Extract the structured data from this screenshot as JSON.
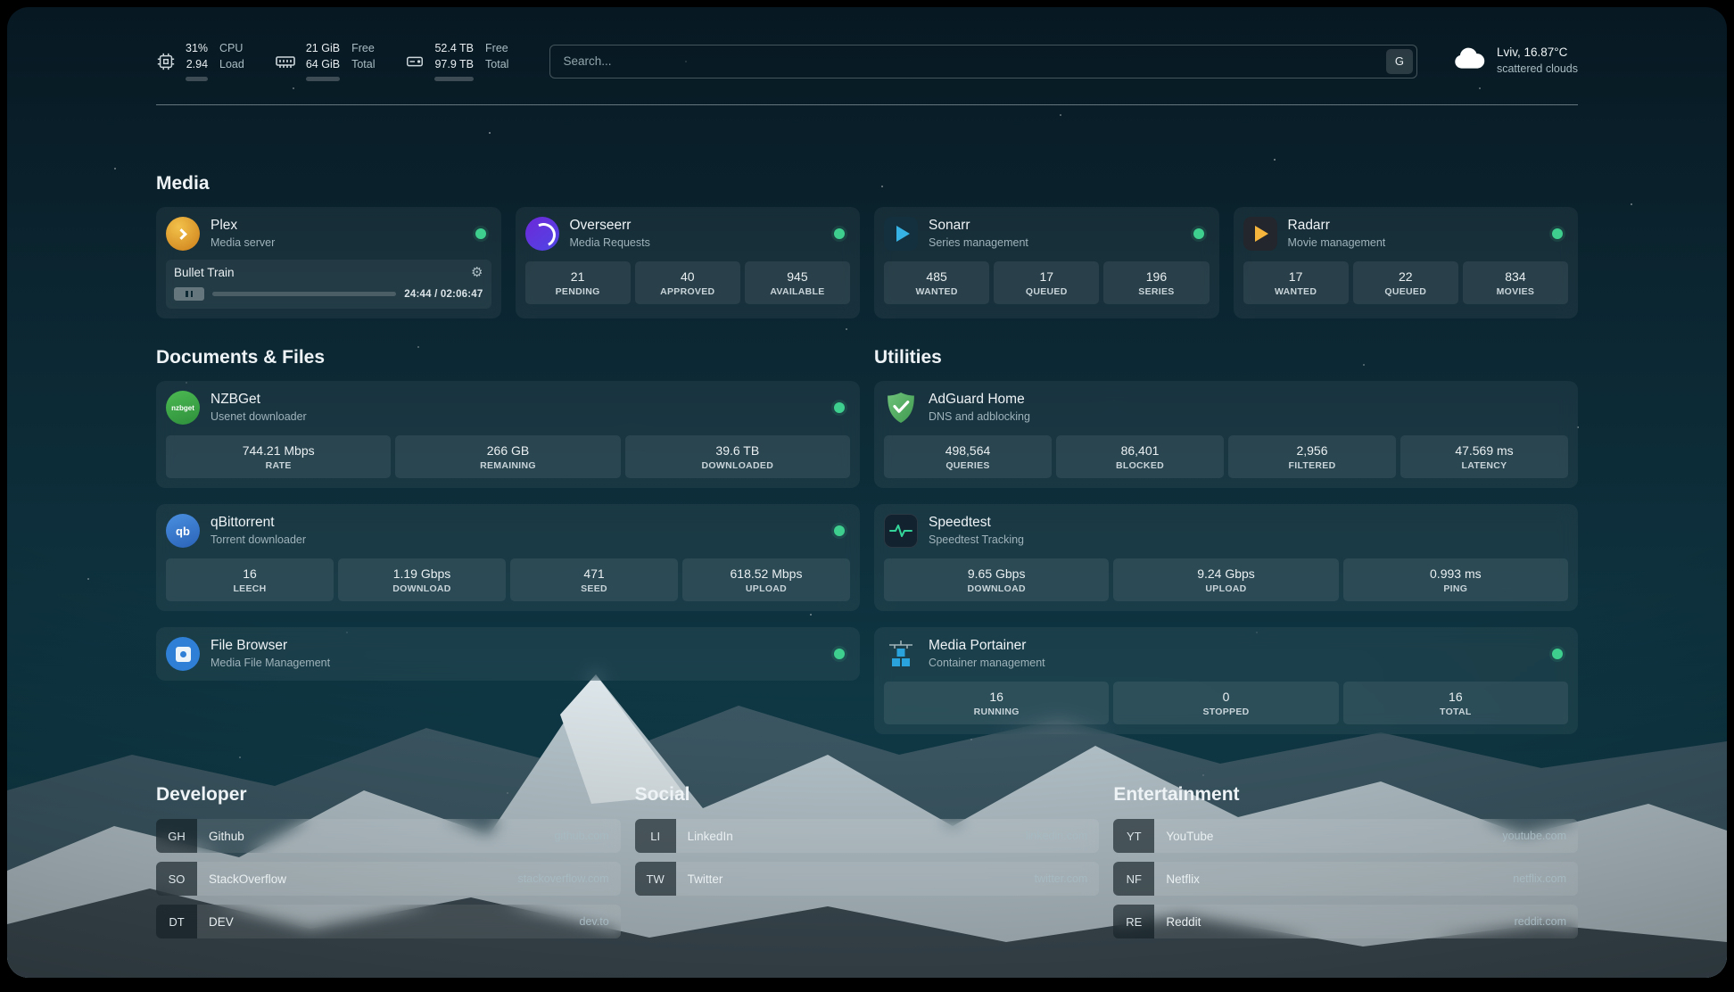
{
  "topbar": {
    "cpu": {
      "value_top": "31%",
      "value_bottom": "2.94",
      "label_top": "CPU",
      "label_bottom": "Load",
      "progress_pct": 31
    },
    "memory": {
      "value_top": "21 GiB",
      "value_bottom": "64 GiB",
      "label_top": "Free",
      "label_bottom": "Total",
      "progress_pct": 67
    },
    "disk": {
      "value_top": "52.4 TB",
      "value_bottom": "97.9 TB",
      "label_top": "Free",
      "label_bottom": "Total",
      "progress_pct": 47
    },
    "search": {
      "placeholder": "Search...",
      "provider_button": "G"
    },
    "weather": {
      "location": "Lviv, 16.87°C",
      "condition": "scattered clouds"
    }
  },
  "sections": {
    "media": "Media",
    "documents": "Documents & Files",
    "utilities": "Utilities",
    "developer": "Developer",
    "social": "Social",
    "entertainment": "Entertainment"
  },
  "services": {
    "plex": {
      "name": "Plex",
      "subtitle": "Media server",
      "now_playing": "Bullet Train",
      "time": "24:44 / 02:06:47",
      "progress_pct": 19.5
    },
    "overseerr": {
      "name": "Overseerr",
      "subtitle": "Media Requests",
      "stats": [
        {
          "value": "21",
          "label": "PENDING"
        },
        {
          "value": "40",
          "label": "APPROVED"
        },
        {
          "value": "945",
          "label": "AVAILABLE"
        }
      ]
    },
    "sonarr": {
      "name": "Sonarr",
      "subtitle": "Series management",
      "stats": [
        {
          "value": "485",
          "label": "WANTED"
        },
        {
          "value": "17",
          "label": "QUEUED"
        },
        {
          "value": "196",
          "label": "SERIES"
        }
      ]
    },
    "radarr": {
      "name": "Radarr",
      "subtitle": "Movie management",
      "stats": [
        {
          "value": "17",
          "label": "WANTED"
        },
        {
          "value": "22",
          "label": "QUEUED"
        },
        {
          "value": "834",
          "label": "MOVIES"
        }
      ]
    },
    "nzbget": {
      "name": "NZBGet",
      "subtitle": "Usenet downloader",
      "icon_text": "nzbget",
      "stats": [
        {
          "value": "744.21 Mbps",
          "label": "RATE"
        },
        {
          "value": "266 GB",
          "label": "REMAINING"
        },
        {
          "value": "39.6 TB",
          "label": "DOWNLOADED"
        }
      ]
    },
    "qbittorrent": {
      "name": "qBittorrent",
      "subtitle": "Torrent downloader",
      "icon_text": "qb",
      "stats": [
        {
          "value": "16",
          "label": "LEECH"
        },
        {
          "value": "1.19 Gbps",
          "label": "DOWNLOAD"
        },
        {
          "value": "471",
          "label": "SEED"
        },
        {
          "value": "618.52 Mbps",
          "label": "UPLOAD"
        }
      ]
    },
    "filebrowser": {
      "name": "File Browser",
      "subtitle": "Media File Management"
    },
    "adguard": {
      "name": "AdGuard Home",
      "subtitle": "DNS and adblocking",
      "stats": [
        {
          "value": "498,564",
          "label": "QUERIES"
        },
        {
          "value": "86,401",
          "label": "BLOCKED"
        },
        {
          "value": "2,956",
          "label": "FILTERED"
        },
        {
          "value": "47.569 ms",
          "label": "LATENCY"
        }
      ]
    },
    "speedtest": {
      "name": "Speedtest",
      "subtitle": "Speedtest Tracking",
      "stats": [
        {
          "value": "9.65 Gbps",
          "label": "DOWNLOAD"
        },
        {
          "value": "9.24 Gbps",
          "label": "UPLOAD"
        },
        {
          "value": "0.993 ms",
          "label": "PING"
        }
      ]
    },
    "portainer": {
      "name": "Media Portainer",
      "subtitle": "Container management",
      "stats": [
        {
          "value": "16",
          "label": "RUNNING"
        },
        {
          "value": "0",
          "label": "STOPPED"
        },
        {
          "value": "16",
          "label": "TOTAL"
        }
      ]
    }
  },
  "bookmarks": {
    "developer": [
      {
        "abbr": "GH",
        "name": "Github",
        "domain": "github.com"
      },
      {
        "abbr": "SO",
        "name": "StackOverflow",
        "domain": "stackoverflow.com"
      },
      {
        "abbr": "DT",
        "name": "DEV",
        "domain": "dev.to"
      }
    ],
    "social": [
      {
        "abbr": "LI",
        "name": "LinkedIn",
        "domain": "linkedin.com"
      },
      {
        "abbr": "TW",
        "name": "Twitter",
        "domain": "twitter.com"
      }
    ],
    "entertainment": [
      {
        "abbr": "YT",
        "name": "YouTube",
        "domain": "youtube.com"
      },
      {
        "abbr": "NF",
        "name": "Netflix",
        "domain": "netflix.com"
      },
      {
        "abbr": "RE",
        "name": "Reddit",
        "domain": "reddit.com"
      }
    ]
  },
  "icons": {
    "gear": "⚙"
  },
  "colors": {
    "status_ok": "#3ecf8e",
    "accent_sonarr": "#36b3e4",
    "accent_radarr": "#f6b53c",
    "speedtest_line": "#34d399"
  }
}
